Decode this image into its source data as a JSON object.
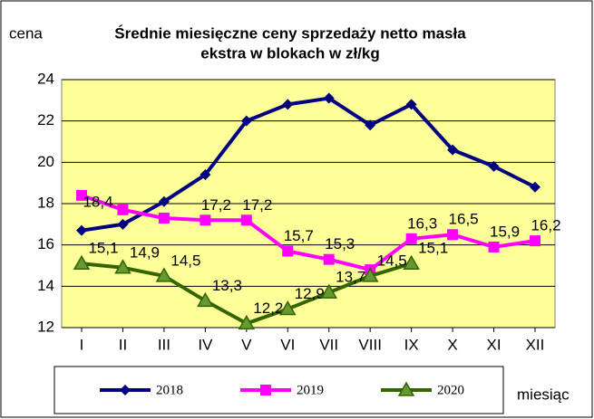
{
  "chart_data": {
    "type": "line",
    "title": "Średnie miesięczne ceny sprzedaży netto masła",
    "subtitle": "ekstra w blokach w zł/kg",
    "y_label": "cena",
    "x_label": "miesiąc",
    "categories": [
      "I",
      "II",
      "III",
      "IV",
      "V",
      "VI",
      "VII",
      "VIII",
      "IX",
      "X",
      "XI",
      "XII"
    ],
    "ylim": [
      12,
      24
    ],
    "yticks": [
      12,
      14,
      16,
      18,
      20,
      22,
      24
    ],
    "grid": true,
    "background": "#ffff99",
    "legend": "bottom",
    "series": [
      {
        "name": "2018",
        "color": "#000080",
        "marker": "diamond",
        "values": [
          16.7,
          17.0,
          18.1,
          19.4,
          22.0,
          22.8,
          23.1,
          21.8,
          22.8,
          20.6,
          19.8,
          18.8
        ]
      },
      {
        "name": "2019",
        "color": "#ff00ff",
        "marker": "square",
        "values": [
          18.4,
          17.7,
          17.3,
          17.2,
          17.2,
          15.7,
          15.3,
          14.8,
          16.3,
          16.5,
          15.9,
          16.2
        ],
        "value_labels": [
          "18,4",
          null,
          null,
          "17,2",
          "17,2",
          "15,7",
          "15,3",
          null,
          "16,3",
          "16,5",
          "15,9",
          "16,2"
        ]
      },
      {
        "name": "2020",
        "color": "#336600",
        "marker": "triangle",
        "values": [
          15.1,
          14.9,
          14.5,
          13.3,
          12.2,
          12.9,
          13.7,
          14.5,
          15.1,
          null,
          null,
          null
        ],
        "value_labels": [
          "15,1",
          "14,9",
          "14,5",
          "13,3",
          "12,2",
          "12,9",
          "13,7",
          "14,5",
          "15,1",
          null,
          null,
          null
        ]
      }
    ]
  }
}
